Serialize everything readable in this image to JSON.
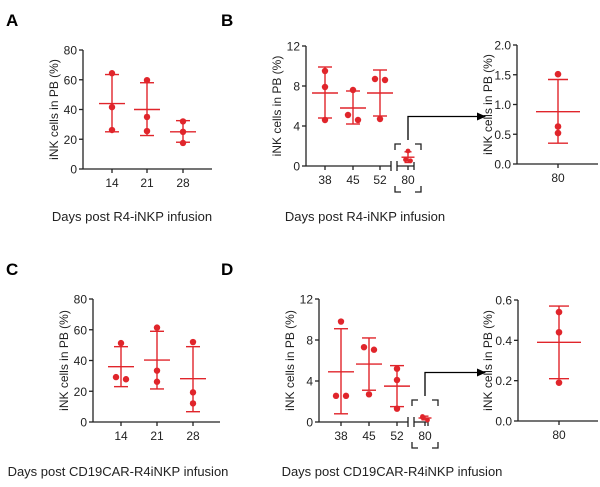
{
  "chart_data": [
    {
      "panel": "A",
      "type": "scatter",
      "title": "",
      "ylabel": "iNK cells in PB (%)",
      "xlabel": "Days post R4-iNKP infusion",
      "ylim": [
        0,
        80
      ],
      "yticks": [
        "0",
        "20",
        "40",
        "60",
        "80"
      ],
      "categories": [
        "14",
        "21",
        "28"
      ],
      "points": [
        [
          64.4,
          41.6,
          26.2
        ],
        [
          59.7,
          35.0,
          25.5
        ],
        [
          32.0,
          25.0,
          17.5
        ]
      ],
      "mean": [
        44,
        40,
        25
      ],
      "error_low": [
        25,
        22.5,
        18
      ],
      "error_high": [
        63.5,
        58,
        32.5
      ]
    },
    {
      "panel": "B",
      "type": "scatter",
      "title": "",
      "ylabel": "iNK cells in PB (%)",
      "xlabel": "Days post R4-iNKP infusion",
      "ylim": [
        0,
        12
      ],
      "yticks": [
        "0",
        "4",
        "8",
        "12"
      ],
      "categories": [
        "38",
        "45",
        "52",
        "80"
      ],
      "points": [
        [
          9.5,
          7.9,
          4.6
        ],
        [
          7.6,
          5.1,
          4.6
        ],
        [
          8.7,
          8.6,
          4.7
        ],
        [
          1.5,
          0.63,
          0.52
        ]
      ],
      "mean": [
        7.3,
        5.8,
        7.3,
        0.88
      ],
      "error_low": [
        4.8,
        4.2,
        5.0,
        0.35
      ],
      "error_high": [
        9.9,
        7.5,
        9.6,
        1.42
      ],
      "highlighted_category": "80"
    },
    {
      "panel": "B-inset",
      "type": "scatter",
      "ylabel": "iNK cells in PB (%)",
      "ylim": [
        0,
        2.0
      ],
      "yticks": [
        "0.0",
        "0.5",
        "1.0",
        "1.5",
        "2.0"
      ],
      "categories": [
        "80"
      ],
      "points": [
        [
          1.51,
          0.63,
          0.52
        ]
      ],
      "mean": [
        0.88
      ],
      "error_low": [
        0.35
      ],
      "error_high": [
        1.42
      ]
    },
    {
      "panel": "C",
      "type": "scatter",
      "ylabel": "iNK cells in PB (%)",
      "xlabel": "Days post CD19CAR-R4iNKP infusion",
      "ylim": [
        0,
        80
      ],
      "yticks": [
        "0",
        "20",
        "40",
        "60",
        "80"
      ],
      "categories": [
        "14",
        "21",
        "28"
      ],
      "points": [
        [
          51.3,
          29.2,
          27.8
        ],
        [
          61.4,
          33.4,
          26.2
        ],
        [
          52.0,
          19.3,
          12.1
        ]
      ],
      "mean": [
        36,
        40.3,
        28.2
      ],
      "error_low": [
        23,
        21.5,
        6.7
      ],
      "error_high": [
        49,
        59,
        49
      ]
    },
    {
      "panel": "D",
      "type": "scatter",
      "ylabel": "iNK cells in PB (%)",
      "xlabel": "Days post CD19CAR-R4iNKP infusion",
      "ylim": [
        0,
        12
      ],
      "yticks": [
        "0",
        "4",
        "8",
        "12"
      ],
      "categories": [
        "38",
        "45",
        "52",
        "80"
      ],
      "points": [
        [
          9.8,
          2.55,
          2.55
        ],
        [
          7.3,
          7.05,
          2.7
        ],
        [
          5.2,
          4.1,
          1.3
        ],
        [
          0.54,
          0.44,
          0.19
        ]
      ],
      "mean": [
        4.9,
        5.65,
        3.5,
        0.39
      ],
      "error_low": [
        0.8,
        3.1,
        1.5,
        0.21
      ],
      "error_high": [
        9.1,
        8.2,
        5.5,
        0.57
      ],
      "highlighted_category": "80"
    },
    {
      "panel": "D-inset",
      "type": "scatter",
      "ylabel": "iNK cells in PB (%)",
      "ylim": [
        0,
        0.6
      ],
      "yticks": [
        "0.0",
        "0.2",
        "0.4",
        "0.6"
      ],
      "categories": [
        "80"
      ],
      "points": [
        [
          0.54,
          0.44,
          0.19
        ]
      ],
      "mean": [
        0.39
      ],
      "error_low": [
        0.21
      ],
      "error_high": [
        0.57
      ]
    }
  ],
  "colors": {
    "marker": "#e0252b",
    "axis": "#222222"
  }
}
